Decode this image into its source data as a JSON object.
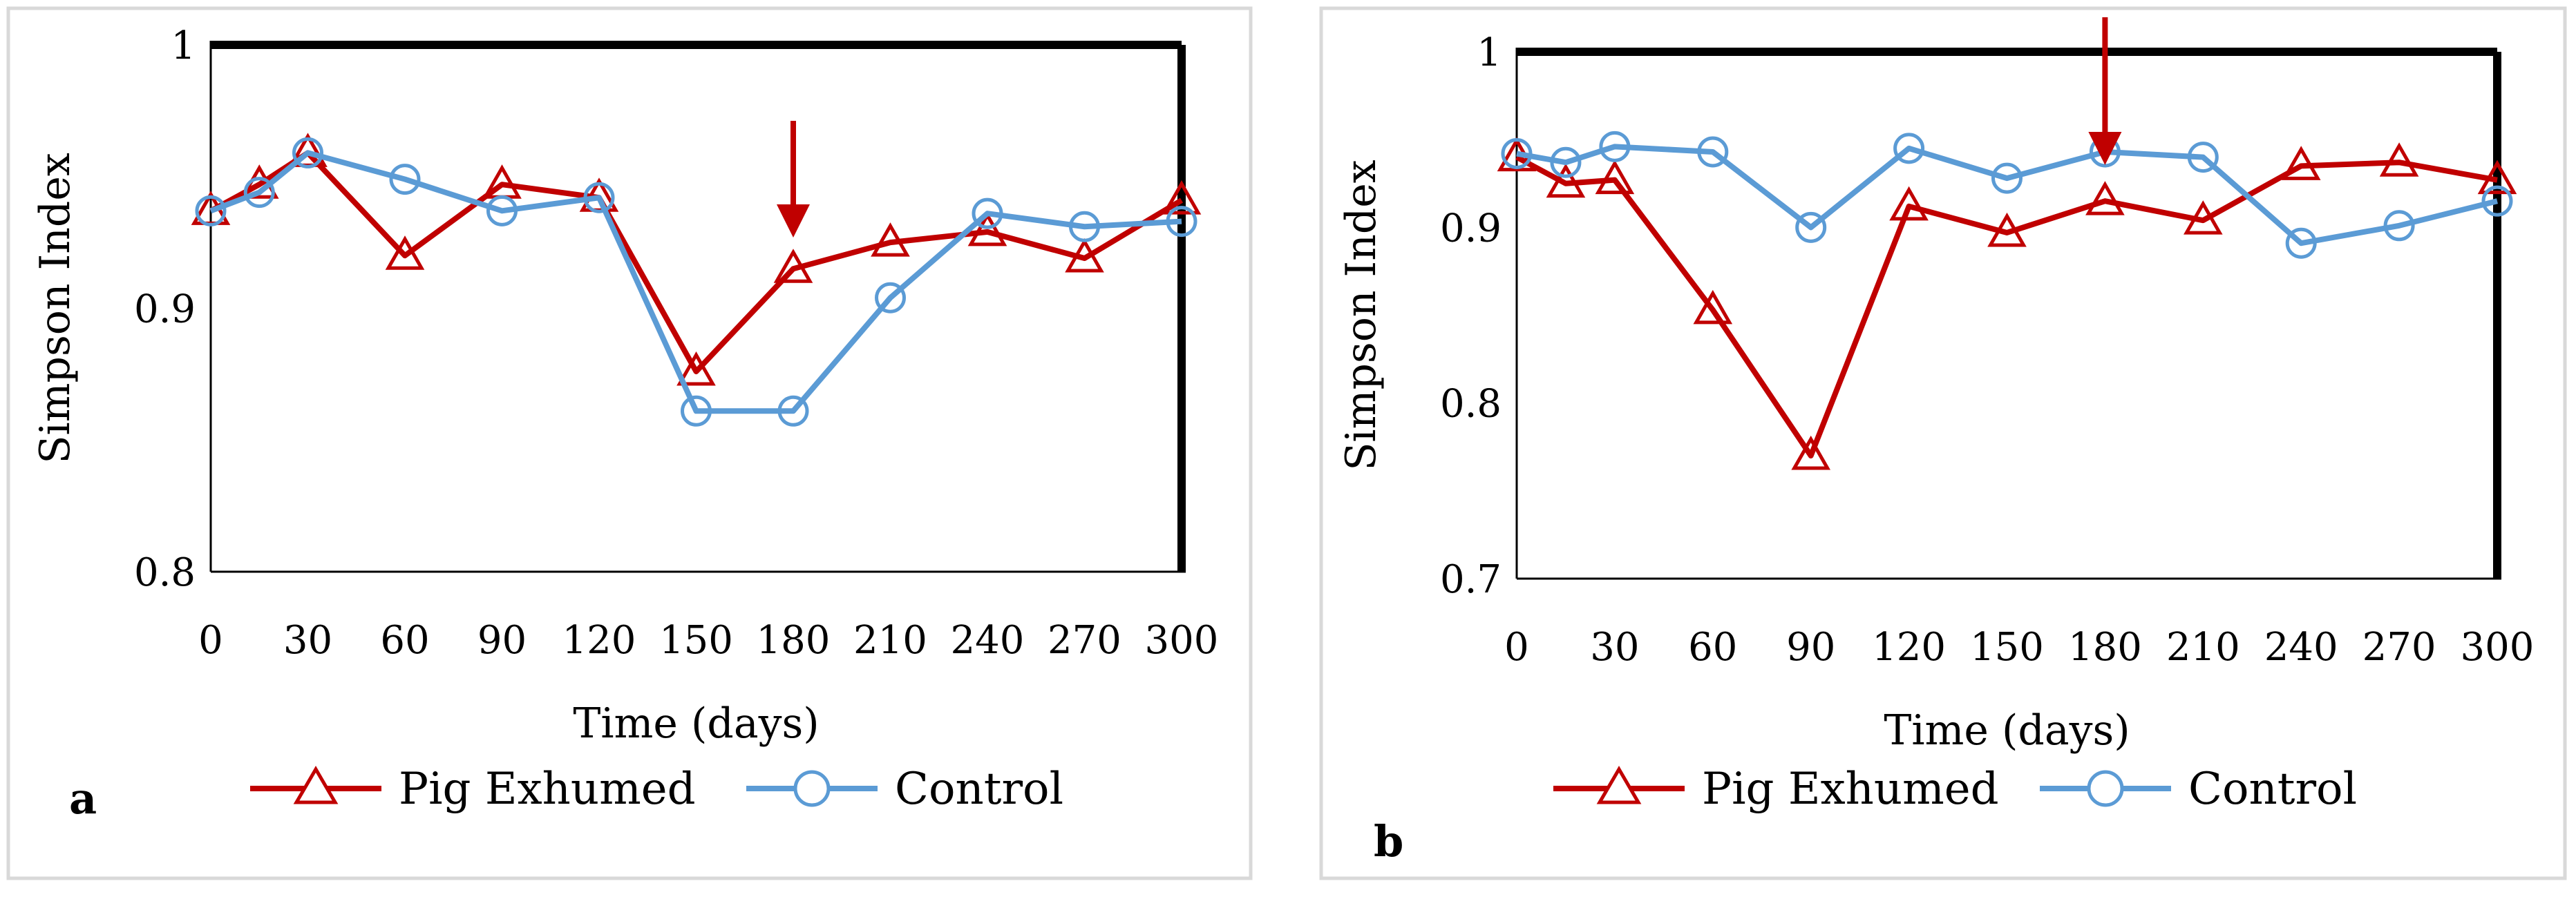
{
  "chart_data": [
    {
      "type": "line",
      "panel_label": "a",
      "title": "",
      "xlabel": "Time (days)",
      "ylabel": "Simpson Index",
      "xlim": [
        0,
        300
      ],
      "ylim": [
        0.8,
        1
      ],
      "x_ticks": [
        "0",
        "30",
        "60",
        "90",
        "120",
        "150",
        "180",
        "210",
        "240",
        "270",
        "300"
      ],
      "y_ticks": [
        "0.8",
        "0.9",
        "1"
      ],
      "x": [
        0,
        15,
        30,
        60,
        90,
        120,
        150,
        180,
        210,
        240,
        270,
        300
      ],
      "series": [
        {
          "name": "Pig Exhumed",
          "color": "#C00000",
          "marker": "triangle",
          "values": [
            0.937,
            0.947,
            0.959,
            0.92,
            0.947,
            0.942,
            0.876,
            0.915,
            0.925,
            0.929,
            0.919,
            0.941
          ]
        },
        {
          "name": "Control",
          "color": "#5B9BD5",
          "marker": "circle",
          "values": [
            0.937,
            0.944,
            0.959,
            0.949,
            0.937,
            0.942,
            0.861,
            0.861,
            0.904,
            0.936,
            0.931,
            0.933
          ]
        }
      ],
      "annotations": [
        {
          "type": "arrow",
          "x": 180,
          "color": "#C00000"
        }
      ],
      "legend_position": "bottom"
    },
    {
      "type": "line",
      "panel_label": "b",
      "title": "",
      "xlabel": "Time (days)",
      "ylabel": "Simpson Index",
      "xlim": [
        0,
        300
      ],
      "ylim": [
        0.7,
        1
      ],
      "x_ticks": [
        "0",
        "30",
        "60",
        "90",
        "120",
        "150",
        "180",
        "210",
        "240",
        "270",
        "300"
      ],
      "y_ticks": [
        "0.7",
        "0.8",
        "0.9",
        "1"
      ],
      "x": [
        0,
        15,
        30,
        60,
        90,
        120,
        150,
        180,
        210,
        240,
        270,
        300
      ],
      "series": [
        {
          "name": "Pig Exhumed",
          "color": "#C00000",
          "marker": "triangle",
          "values": [
            0.94,
            0.925,
            0.927,
            0.853,
            0.77,
            0.912,
            0.897,
            0.915,
            0.904,
            0.935,
            0.937,
            0.927
          ]
        },
        {
          "name": "Control",
          "color": "#5B9BD5",
          "marker": "circle",
          "values": [
            0.942,
            0.937,
            0.946,
            0.943,
            0.9,
            0.945,
            0.928,
            0.943,
            0.94,
            0.891,
            0.901,
            0.915
          ]
        }
      ],
      "annotations": [
        {
          "type": "arrow",
          "x": 180,
          "color": "#C00000"
        }
      ],
      "legend_position": "bottom"
    }
  ]
}
